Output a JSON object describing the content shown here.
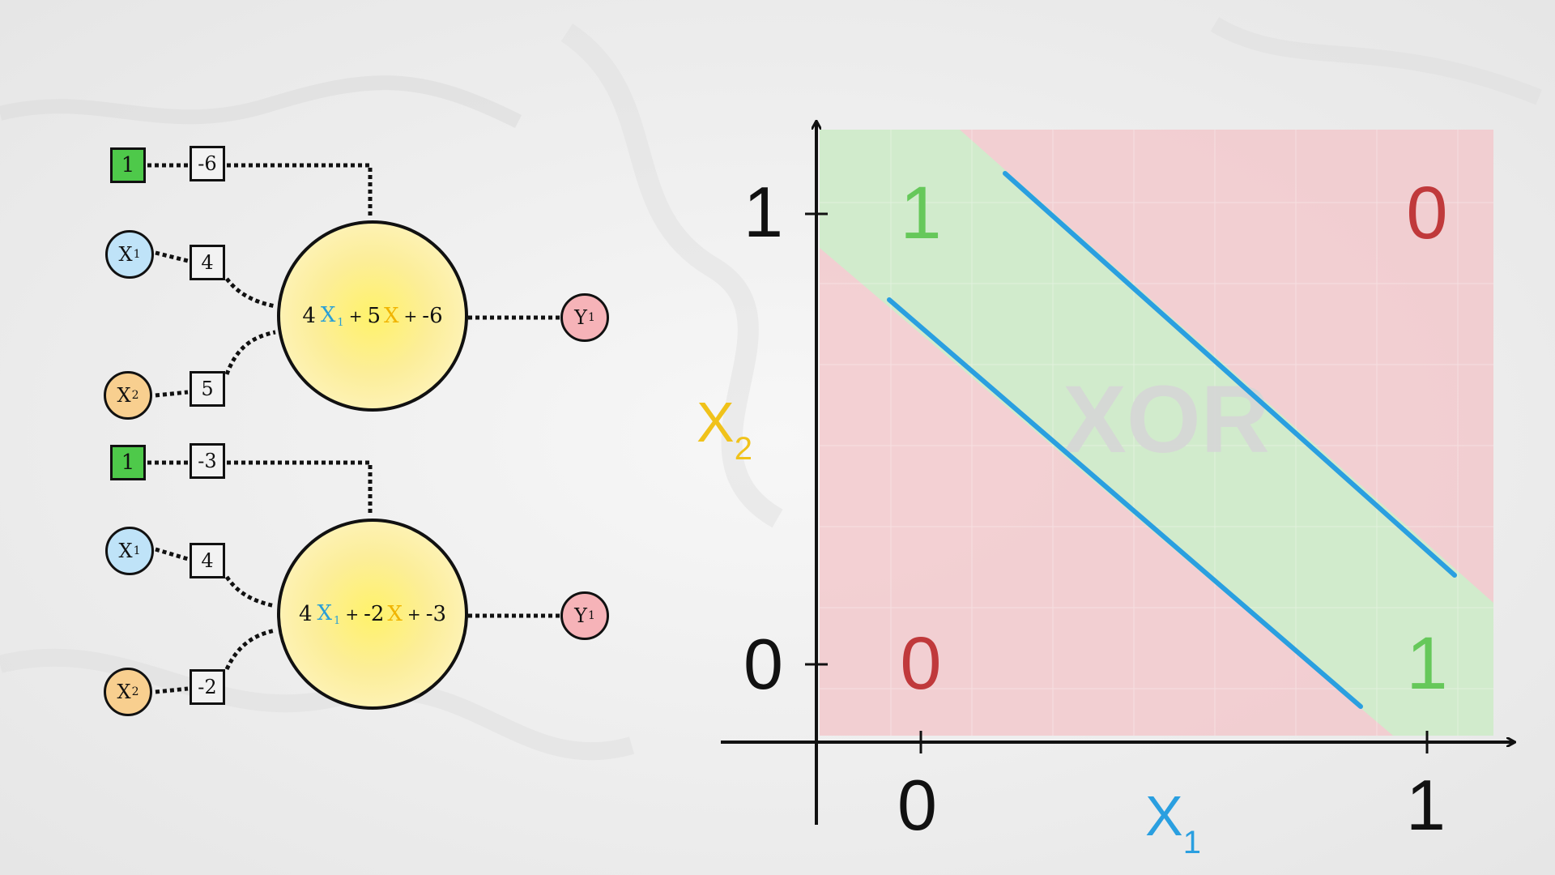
{
  "network": {
    "neurons": [
      {
        "bias_input": "1",
        "bias_weight": "-6",
        "x1_label": "X",
        "x1_sub": "1",
        "x1_weight": "4",
        "x2_label": "X",
        "x2_sub": "2",
        "x2_weight": "5",
        "equation": {
          "w1": "4",
          "x1": "X",
          "x1_sub": "1",
          "plus1": "+",
          "w2": "5",
          "x2": "X",
          "plus2": "+",
          "b": "-6"
        },
        "output_label": "Y",
        "output_sub": "1"
      },
      {
        "bias_input": "1",
        "bias_weight": "-3",
        "x1_label": "X",
        "x1_sub": "1",
        "x1_weight": "4",
        "x2_label": "X",
        "x2_sub": "2",
        "x2_weight": "-2",
        "equation": {
          "w1": "4",
          "x1": "X",
          "x1_sub": "1",
          "plus1": "+",
          "w2": "-2",
          "x2": "X",
          "plus2": "+",
          "b": "-3"
        },
        "output_label": "Y",
        "output_sub": "1"
      }
    ]
  },
  "plot": {
    "watermark": "XOR",
    "x_axis_label": "X",
    "x_axis_sub": "1",
    "y_axis_label": "X",
    "y_axis_sub": "2",
    "x_ticks": [
      "0",
      "1"
    ],
    "y_ticks": [
      "0",
      "1"
    ],
    "region_colors": {
      "positive": "#cfeccb",
      "negative": "#f2c9cc"
    },
    "line_color": "#2a9fe0",
    "points": [
      {
        "x": 0,
        "y": 1,
        "label": "1",
        "color": "#66c85a"
      },
      {
        "x": 1,
        "y": 1,
        "label": "0",
        "color": "#c0393b"
      },
      {
        "x": 0,
        "y": 0,
        "label": "0",
        "color": "#c0393b"
      },
      {
        "x": 1,
        "y": 0,
        "label": "1",
        "color": "#66c85a"
      }
    ]
  }
}
